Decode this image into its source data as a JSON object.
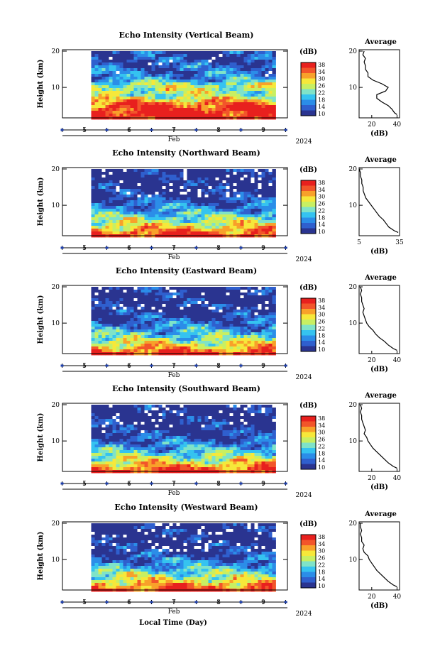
{
  "figure": {
    "xlabel": "Local Time (Day)",
    "month_label": "Feb",
    "year_label": "2024",
    "ylabel": "Height (km)",
    "colorbar_unit": "(dB)",
    "colorbar_ticks": [
      "38",
      "34",
      "30",
      "26",
      "22",
      "18",
      "14",
      "10"
    ],
    "average_title": "Average",
    "average_xlabel": "(dB)"
  },
  "colors": {
    "colormap": [
      "#2a3490",
      "#2f5fce",
      "#2b8de8",
      "#35c3f0",
      "#7fe3c8",
      "#c8ef62",
      "#f6e83a",
      "#f8a12a",
      "#f2552a",
      "#e8201e"
    ],
    "no_data": "#ffffff",
    "tick_marker": "#1d3fb0"
  },
  "chart_data": [
    {
      "type": "heatmap",
      "title": "Echo Intensity (Vertical Beam)",
      "ylabel": "Height (km)",
      "xlabel": "Local Time (Day)",
      "x_ticks": [
        "5",
        "6",
        "7",
        "8",
        "9"
      ],
      "y_ticks": [
        20,
        10
      ],
      "ylim": [
        2,
        20
      ],
      "xlim": [
        4.5,
        9.5
      ],
      "data_start": 5.15,
      "data_end": 9.2,
      "colorbar": {
        "unit": "(dB)",
        "range": [
          10,
          38
        ],
        "ticks": [
          38,
          34,
          30,
          26,
          22,
          18,
          14,
          10
        ]
      },
      "profile_by_height": [
        {
          "h": 2,
          "db": 38
        },
        {
          "h": 4,
          "db": 37
        },
        {
          "h": 6,
          "db": 33
        },
        {
          "h": 7,
          "db": 27
        },
        {
          "h": 8,
          "db": 24
        },
        {
          "h": 9,
          "db": 25
        },
        {
          "h": 10,
          "db": 26
        },
        {
          "h": 11,
          "db": 23
        },
        {
          "h": 12,
          "db": 18
        },
        {
          "h": 14,
          "db": 15
        },
        {
          "h": 16,
          "db": 14
        },
        {
          "h": 18,
          "db": 13
        },
        {
          "h": 20,
          "db": 12
        }
      ],
      "average_profile": {
        "title": "Average",
        "xlabel": "(dB)",
        "x_ticks": [
          20,
          40
        ],
        "xlim": [
          10,
          42
        ],
        "y_ticks": [
          20,
          10
        ],
        "ylim": [
          2,
          20
        ],
        "points": [
          {
            "h": 2.5,
            "db": 40
          },
          {
            "h": 3,
            "db": 38
          },
          {
            "h": 4,
            "db": 36
          },
          {
            "h": 5,
            "db": 33
          },
          {
            "h": 6,
            "db": 28
          },
          {
            "h": 7,
            "db": 24
          },
          {
            "h": 8,
            "db": 24
          },
          {
            "h": 9,
            "db": 31
          },
          {
            "h": 10,
            "db": 33
          },
          {
            "h": 11,
            "db": 28
          },
          {
            "h": 12,
            "db": 21
          },
          {
            "h": 13,
            "db": 17
          },
          {
            "h": 14,
            "db": 17
          },
          {
            "h": 15,
            "db": 15
          },
          {
            "h": 16,
            "db": 15
          },
          {
            "h": 17,
            "db": 14
          },
          {
            "h": 18,
            "db": 15
          },
          {
            "h": 19,
            "db": 13
          },
          {
            "h": 20,
            "db": 14
          }
        ]
      }
    },
    {
      "type": "heatmap",
      "title": "Echo Intensity (Northward Beam)",
      "ylabel": "Height (km)",
      "xlabel": "Local Time (Day)",
      "x_ticks": [
        "5",
        "6",
        "7",
        "8",
        "9"
      ],
      "y_ticks": [
        20,
        10
      ],
      "ylim": [
        2,
        20
      ],
      "xlim": [
        4.5,
        9.5
      ],
      "data_start": 5.15,
      "data_end": 9.2,
      "colorbar": {
        "unit": "(dB)",
        "range": [
          10,
          38
        ],
        "ticks": [
          38,
          34,
          30,
          26,
          22,
          18,
          14,
          10
        ]
      },
      "profile_by_height": [
        {
          "h": 2,
          "db": 37
        },
        {
          "h": 3,
          "db": 33
        },
        {
          "h": 5,
          "db": 27
        },
        {
          "h": 7,
          "db": 22
        },
        {
          "h": 9,
          "db": 18
        },
        {
          "h": 11,
          "db": 14
        },
        {
          "h": 13,
          "db": 11
        },
        {
          "h": 16,
          "db": 10
        },
        {
          "h": 20,
          "db": 10
        }
      ],
      "average_profile": {
        "title": "Average",
        "xlabel": "(dB)",
        "x_ticks": [
          5,
          35
        ],
        "xlim": [
          5,
          35
        ],
        "y_ticks": [
          20,
          10
        ],
        "ylim": [
          2,
          20
        ],
        "points": [
          {
            "h": 2.5,
            "db": 34
          },
          {
            "h": 3,
            "db": 31
          },
          {
            "h": 4,
            "db": 27
          },
          {
            "h": 5,
            "db": 25
          },
          {
            "h": 6,
            "db": 23
          },
          {
            "h": 7,
            "db": 20
          },
          {
            "h": 8,
            "db": 18
          },
          {
            "h": 9,
            "db": 16
          },
          {
            "h": 10,
            "db": 14
          },
          {
            "h": 11,
            "db": 12
          },
          {
            "h": 12,
            "db": 10
          },
          {
            "h": 13,
            "db": 9
          },
          {
            "h": 14,
            "db": 8
          },
          {
            "h": 15,
            "db": 8
          },
          {
            "h": 16,
            "db": 7
          },
          {
            "h": 17,
            "db": 7
          },
          {
            "h": 18,
            "db": 6
          },
          {
            "h": 19,
            "db": 6
          },
          {
            "h": 20,
            "db": 5
          }
        ]
      }
    },
    {
      "type": "heatmap",
      "title": "Echo Intensity (Eastward Beam)",
      "ylabel": "Height (km)",
      "xlabel": "Local Time (Day)",
      "x_ticks": [
        "5",
        "6",
        "7",
        "8",
        "9"
      ],
      "y_ticks": [
        20,
        10
      ],
      "ylim": [
        2,
        20
      ],
      "xlim": [
        4.5,
        9.5
      ],
      "data_start": 5.15,
      "data_end": 9.2,
      "colorbar": {
        "unit": "(dB)",
        "range": [
          10,
          38
        ],
        "ticks": [
          38,
          34,
          30,
          26,
          22,
          18,
          14,
          10
        ]
      },
      "profile_by_height": [
        {
          "h": 2,
          "db": 37
        },
        {
          "h": 3,
          "db": 32
        },
        {
          "h": 5,
          "db": 26
        },
        {
          "h": 7,
          "db": 21
        },
        {
          "h": 9,
          "db": 17
        },
        {
          "h": 11,
          "db": 13
        },
        {
          "h": 13,
          "db": 11
        },
        {
          "h": 16,
          "db": 10
        },
        {
          "h": 20,
          "db": 10
        }
      ],
      "average_profile": {
        "title": "Average",
        "xlabel": "(dB)",
        "x_ticks": [
          20,
          40
        ],
        "xlim": [
          10,
          42
        ],
        "y_ticks": [
          20,
          10
        ],
        "ylim": [
          2,
          20
        ],
        "points": [
          {
            "h": 2.5,
            "db": 40
          },
          {
            "h": 3,
            "db": 37
          },
          {
            "h": 4,
            "db": 33
          },
          {
            "h": 5,
            "db": 30
          },
          {
            "h": 6,
            "db": 26
          },
          {
            "h": 7,
            "db": 23
          },
          {
            "h": 8,
            "db": 21
          },
          {
            "h": 9,
            "db": 18
          },
          {
            "h": 10,
            "db": 16
          },
          {
            "h": 11,
            "db": 15
          },
          {
            "h": 12,
            "db": 14
          },
          {
            "h": 13,
            "db": 13
          },
          {
            "h": 14,
            "db": 14
          },
          {
            "h": 15,
            "db": 13
          },
          {
            "h": 16,
            "db": 12
          },
          {
            "h": 17,
            "db": 12
          },
          {
            "h": 18,
            "db": 11
          },
          {
            "h": 19,
            "db": 12
          },
          {
            "h": 20,
            "db": 11
          }
        ]
      }
    },
    {
      "type": "heatmap",
      "title": "Echo Intensity (Southward Beam)",
      "ylabel": "Height (km)",
      "xlabel": "Local Time (Day)",
      "x_ticks": [
        "5",
        "6",
        "7",
        "8",
        "9"
      ],
      "y_ticks": [
        20,
        10
      ],
      "ylim": [
        2,
        20
      ],
      "xlim": [
        4.5,
        9.5
      ],
      "data_start": 5.15,
      "data_end": 9.2,
      "colorbar": {
        "unit": "(dB)",
        "range": [
          10,
          38
        ],
        "ticks": [
          38,
          34,
          30,
          26,
          22,
          18,
          14,
          10
        ]
      },
      "profile_by_height": [
        {
          "h": 2,
          "db": 37
        },
        {
          "h": 3,
          "db": 32
        },
        {
          "h": 5,
          "db": 26
        },
        {
          "h": 7,
          "db": 21
        },
        {
          "h": 9,
          "db": 17
        },
        {
          "h": 11,
          "db": 13
        },
        {
          "h": 13,
          "db": 11
        },
        {
          "h": 16,
          "db": 10
        },
        {
          "h": 20,
          "db": 10
        }
      ],
      "average_profile": {
        "title": "Average",
        "xlabel": "(dB)",
        "x_ticks": [
          20,
          40
        ],
        "xlim": [
          10,
          42
        ],
        "y_ticks": [
          20,
          10
        ],
        "ylim": [
          2,
          20
        ],
        "points": [
          {
            "h": 2.5,
            "db": 40
          },
          {
            "h": 3,
            "db": 37
          },
          {
            "h": 4,
            "db": 33
          },
          {
            "h": 5,
            "db": 30
          },
          {
            "h": 6,
            "db": 27
          },
          {
            "h": 7,
            "db": 24
          },
          {
            "h": 8,
            "db": 21
          },
          {
            "h": 9,
            "db": 19
          },
          {
            "h": 10,
            "db": 17
          },
          {
            "h": 11,
            "db": 16
          },
          {
            "h": 12,
            "db": 14
          },
          {
            "h": 13,
            "db": 15
          },
          {
            "h": 14,
            "db": 14
          },
          {
            "h": 15,
            "db": 13
          },
          {
            "h": 16,
            "db": 12
          },
          {
            "h": 17,
            "db": 12
          },
          {
            "h": 18,
            "db": 11
          },
          {
            "h": 19,
            "db": 12
          },
          {
            "h": 20,
            "db": 11
          }
        ]
      }
    },
    {
      "type": "heatmap",
      "title": "Echo Intensity (Westward Beam)",
      "ylabel": "Height (km)",
      "xlabel": "Local Time (Day)",
      "x_ticks": [
        "5",
        "6",
        "7",
        "8",
        "9"
      ],
      "y_ticks": [
        20,
        10
      ],
      "ylim": [
        2,
        20
      ],
      "xlim": [
        4.5,
        9.5
      ],
      "data_start": 5.15,
      "data_end": 9.2,
      "colorbar": {
        "unit": "(dB)",
        "range": [
          10,
          38
        ],
        "ticks": [
          38,
          34,
          30,
          26,
          22,
          18,
          14,
          10
        ]
      },
      "profile_by_height": [
        {
          "h": 2,
          "db": 37
        },
        {
          "h": 3,
          "db": 32
        },
        {
          "h": 5,
          "db": 26
        },
        {
          "h": 7,
          "db": 21
        },
        {
          "h": 9,
          "db": 17
        },
        {
          "h": 11,
          "db": 13
        },
        {
          "h": 13,
          "db": 11
        },
        {
          "h": 16,
          "db": 10
        },
        {
          "h": 20,
          "db": 10
        }
      ],
      "average_profile": {
        "title": "Average",
        "xlabel": "(dB)",
        "x_ticks": [
          20,
          40
        ],
        "xlim": [
          10,
          42
        ],
        "y_ticks": [
          20,
          10
        ],
        "ylim": [
          2,
          20
        ],
        "points": [
          {
            "h": 2.5,
            "db": 40
          },
          {
            "h": 3,
            "db": 37
          },
          {
            "h": 4,
            "db": 33
          },
          {
            "h": 5,
            "db": 30
          },
          {
            "h": 6,
            "db": 27
          },
          {
            "h": 7,
            "db": 24
          },
          {
            "h": 8,
            "db": 22
          },
          {
            "h": 9,
            "db": 20
          },
          {
            "h": 10,
            "db": 18
          },
          {
            "h": 11,
            "db": 17
          },
          {
            "h": 12,
            "db": 14
          },
          {
            "h": 13,
            "db": 13
          },
          {
            "h": 14,
            "db": 14
          },
          {
            "h": 15,
            "db": 12
          },
          {
            "h": 16,
            "db": 12
          },
          {
            "h": 17,
            "db": 11
          },
          {
            "h": 18,
            "db": 12
          },
          {
            "h": 19,
            "db": 11
          },
          {
            "h": 20,
            "db": 11
          }
        ]
      }
    }
  ]
}
